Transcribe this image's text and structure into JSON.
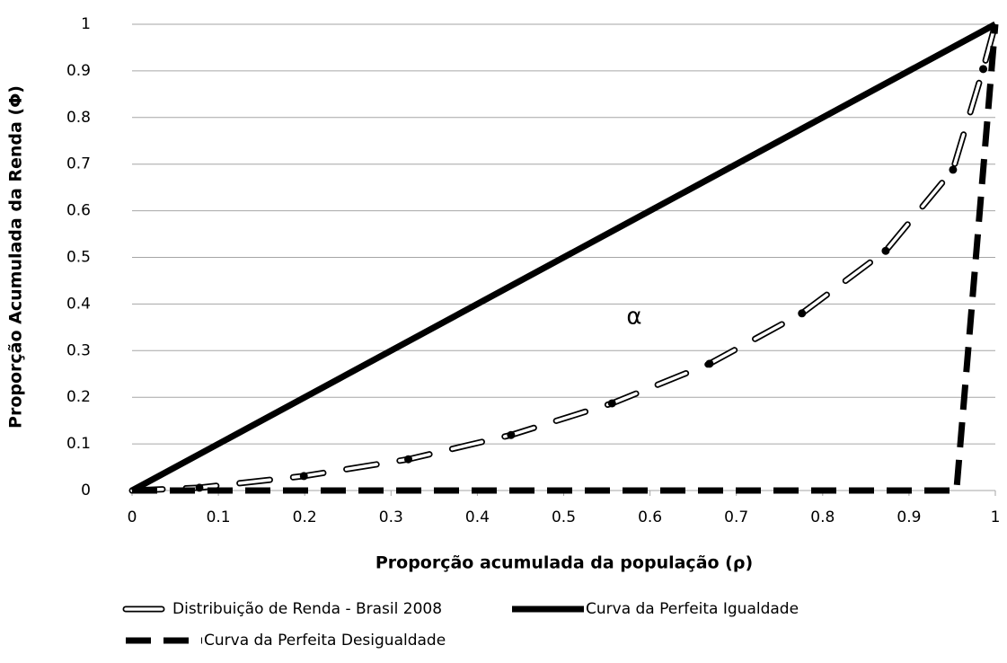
{
  "chart_data": {
    "type": "line",
    "xlabel": "Proporção acumulada da população (ρ)",
    "ylabel": "Proporção Acumulada da Renda (Φ)",
    "annotation": "α",
    "xlim": [
      0,
      1
    ],
    "xticks": [
      0,
      0.1,
      0.2,
      0.3,
      0.4,
      0.5,
      0.6,
      0.7,
      0.8,
      0.9,
      1
    ],
    "ylim": [
      0,
      1
    ],
    "yticks": [
      0,
      0.1,
      0.2,
      0.3,
      0.4,
      0.5,
      0.6,
      0.7,
      0.8,
      0.9,
      1
    ],
    "grid": true,
    "legend": "bottom",
    "series": [
      {
        "name": "Distribuição de Renda - Brasil 2008",
        "color": "#000000",
        "style": "outline-dash-dot",
        "x": [
          0,
          0.078,
          0.199,
          0.32,
          0.439,
          0.556,
          0.669,
          0.776,
          0.873,
          0.951,
          0.986,
          1
        ],
        "values": [
          0,
          0.006,
          0.031,
          0.067,
          0.119,
          0.187,
          0.272,
          0.38,
          0.514,
          0.688,
          0.904,
          1
        ]
      },
      {
        "name": "Curva da Perfeita Igualdade",
        "color": "#000000",
        "style": "solid",
        "x": [
          0,
          1
        ],
        "values": [
          0,
          1
        ]
      },
      {
        "name": "Curva da Perfeita Desigualdade",
        "color": "#000000",
        "style": "dash",
        "x": [
          0,
          0.955,
          1
        ],
        "values": [
          0,
          0,
          1
        ]
      }
    ]
  }
}
